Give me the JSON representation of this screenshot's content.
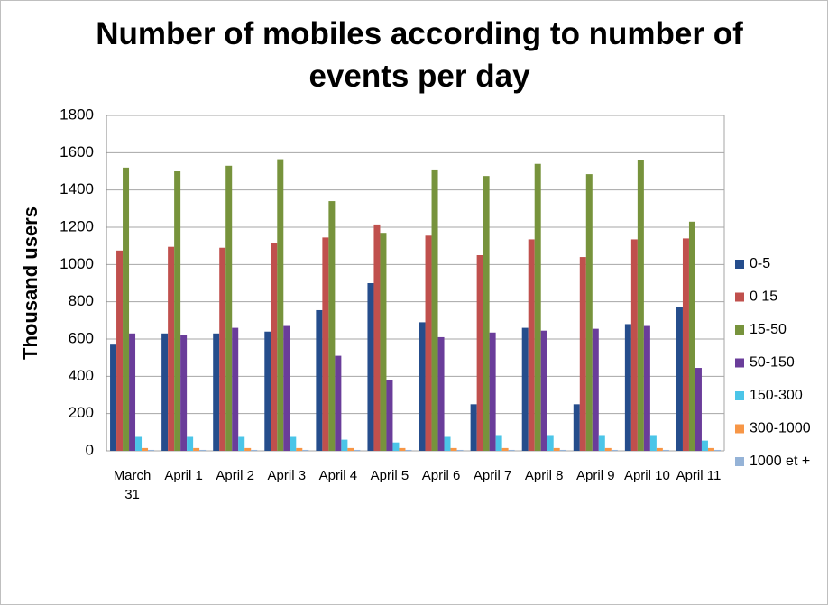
{
  "chart_data": {
    "type": "bar",
    "title": "Number of mobiles according to number of events per day",
    "y_label": "Thousand users",
    "categories": [
      "March 31",
      "April 1",
      "April 2",
      "April 3",
      "April 4",
      "April 5",
      "April 6",
      "April 7",
      "April 8",
      "April 9",
      "April 10",
      "April 11"
    ],
    "series": [
      {
        "name": "0-5",
        "color": "#254d8c",
        "values": [
          570,
          630,
          630,
          640,
          755,
          900,
          690,
          250,
          660,
          250,
          680,
          770
        ]
      },
      {
        "name": "0 15",
        "color": "#c0504d",
        "values": [
          1075,
          1095,
          1090,
          1115,
          1145,
          1215,
          1155,
          1050,
          1135,
          1040,
          1135,
          1140
        ]
      },
      {
        "name": "15-50",
        "color": "#77933c",
        "values": [
          1520,
          1500,
          1530,
          1565,
          1340,
          1170,
          1510,
          1475,
          1540,
          1485,
          1560,
          1230
        ]
      },
      {
        "name": "50-150",
        "color": "#6a3d9a",
        "values": [
          630,
          620,
          660,
          670,
          510,
          380,
          610,
          635,
          645,
          655,
          670,
          445
        ]
      },
      {
        "name": "150-300",
        "color": "#4bc5e8",
        "values": [
          75,
          75,
          75,
          75,
          60,
          45,
          75,
          80,
          80,
          80,
          80,
          55
        ]
      },
      {
        "name": "300-1000",
        "color": "#f79646",
        "values": [
          15,
          15,
          15,
          15,
          15,
          15,
          15,
          15,
          15,
          15,
          15,
          15
        ]
      },
      {
        "name": "1000 et +",
        "color": "#95b3d7",
        "values": [
          5,
          5,
          5,
          5,
          5,
          5,
          5,
          5,
          5,
          5,
          5,
          5
        ]
      }
    ],
    "ylim": [
      0,
      1800
    ],
    "yticks": [
      0,
      200,
      400,
      600,
      800,
      1000,
      1200,
      1400,
      1600,
      1800
    ],
    "grid": true,
    "legend": "right"
  }
}
